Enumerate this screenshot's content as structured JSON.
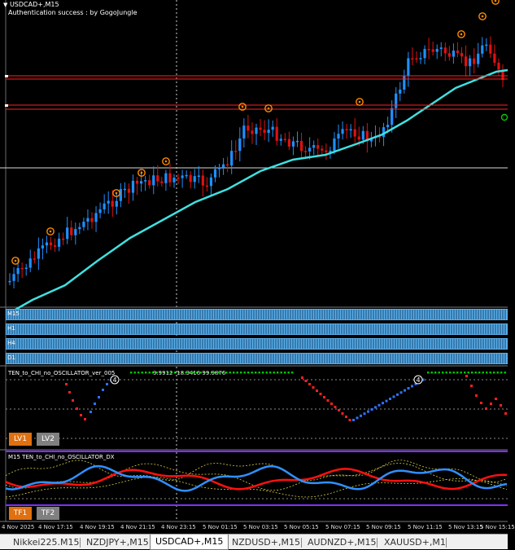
{
  "header": {
    "symbol": "USDCAD+,M15",
    "auth_text": "Authentication success : by GogoJungle"
  },
  "mtf_rows": [
    "M15",
    "H1",
    "H4",
    "D1"
  ],
  "osc1": {
    "title": "TEN_to_CHI_no_OSCILLATOR_ver_005",
    "values": "9.9912 -18.3416 99.9876",
    "marker_label": "4",
    "button_lv1": "LV1",
    "button_lv2": "LV2"
  },
  "osc2": {
    "title": "M15 TEN_to_CHI_no_OSCILLATOR_DX",
    "button_tf1": "TF1",
    "button_tf2": "TF2"
  },
  "time_axis": [
    "4 Nov 2025",
    "4 Nov 17:15",
    "4 Nov 19:15",
    "4 Nov 21:15",
    "4 Nov 23:15",
    "5 Nov 01:15",
    "5 Nov 03:15",
    "5 Nov 05:15",
    "5 Nov 07:15",
    "5 Nov 09:15",
    "5 Nov 11:15",
    "5 Nov 13:15",
    "5 Nov 15:15"
  ],
  "tabs": [
    "Nikkei225.M15",
    "NZDJPY+,M15",
    "USDCAD+,M15",
    "NZDUSD+,M15",
    "AUDNZD+,M15",
    "XAUUSD+,M1"
  ],
  "active_tab": 2,
  "colors": {
    "bull": "#1e90ff",
    "bear": "#e01010",
    "ma": "#40e0e0",
    "level": "#ff2020",
    "marker": "#ff8c00",
    "mtf_fill": "#5aaee8",
    "osc_blue": "#3070ff",
    "osc_red": "#ff2020",
    "osc_green": "#00cc00",
    "dx_blue": "#3090ff",
    "dx_red": "#ff1010",
    "dx_band": "#d8d040",
    "separator": "#8030ff"
  }
}
